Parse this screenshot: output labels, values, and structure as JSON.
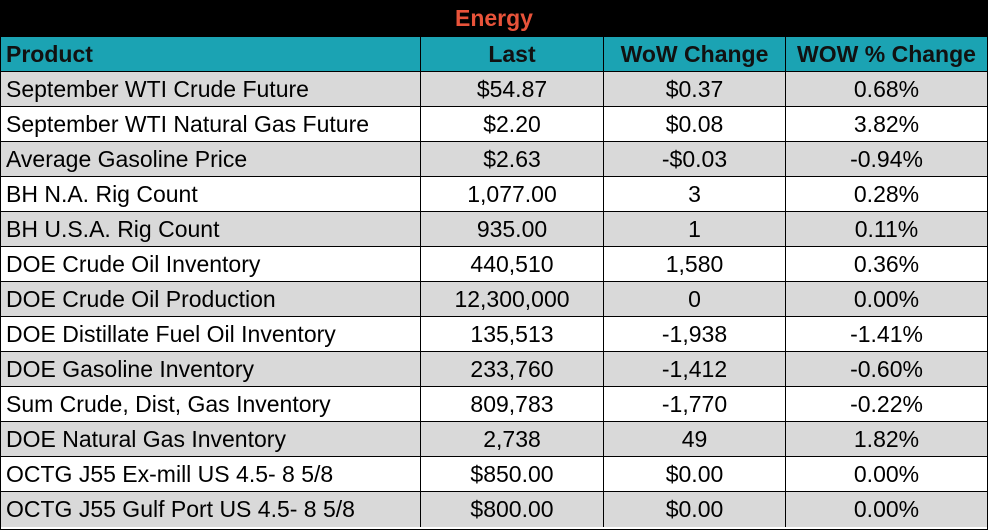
{
  "title": "Energy",
  "colors": {
    "title_text": "#e8533a",
    "title_bg": "#000000",
    "header_bg": "#1ba3b3",
    "shaded_row": "#d9d9d9"
  },
  "headers": [
    "Product",
    "Last",
    "WoW Change",
    "WOW % Change"
  ],
  "rows": [
    [
      "September WTI Crude Future",
      "$54.87",
      "$0.37",
      "0.68%"
    ],
    [
      "September WTI Natural Gas Future",
      "$2.20",
      "$0.08",
      "3.82%"
    ],
    [
      "Average Gasoline Price",
      "$2.63",
      "-$0.03",
      "-0.94%"
    ],
    [
      "BH N.A. Rig Count",
      "1,077.00",
      "3",
      "0.28%"
    ],
    [
      "BH U.S.A. Rig Count",
      "935.00",
      "1",
      "0.11%"
    ],
    [
      "DOE Crude Oil Inventory",
      "440,510",
      "1,580",
      "0.36%"
    ],
    [
      "DOE Crude Oil Production",
      "12,300,000",
      "0",
      "0.00%"
    ],
    [
      "DOE Distillate Fuel Oil Inventory",
      "135,513",
      "-1,938",
      "-1.41%"
    ],
    [
      "DOE Gasoline Inventory",
      "233,760",
      "-1,412",
      "-0.60%"
    ],
    [
      "Sum Crude, Dist, Gas Inventory",
      "809,783",
      "-1,770",
      "-0.22%"
    ],
    [
      "DOE Natural Gas Inventory",
      "2,738",
      "49",
      "1.82%"
    ],
    [
      "OCTG J55 Ex-mill US 4.5- 8 5/8",
      "$850.00",
      "$0.00",
      "0.00%"
    ],
    [
      "OCTG J55 Gulf Port US 4.5- 8 5/8",
      "$800.00",
      "$0.00",
      "0.00%"
    ]
  ]
}
